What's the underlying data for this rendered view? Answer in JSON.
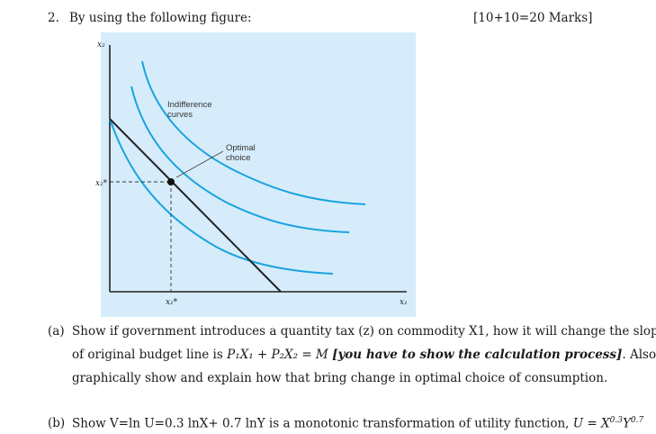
{
  "question": {
    "number": "2.",
    "prompt": "By using the following figure:",
    "marks": "[10+10=20 Marks]"
  },
  "figure": {
    "indifference_label_line1": "Indifference",
    "indifference_label_line2": "curves",
    "optimal_label_line1": "Optimal",
    "optimal_label_line2": "choice",
    "y_axis_label": "x₂",
    "x_axis_label": "x₁",
    "y_star_label": "x₂*",
    "x_star_label": "x₁*",
    "colors": {
      "panel_bg": "#d6ecfb",
      "curve": "#1aa3e0",
      "budget_line": "#222222",
      "axis": "#222222"
    }
  },
  "part_a": {
    "label": "(a)",
    "line1": "Show if government introduces a quantity tax (z) on commodity X1, how it will change the slope",
    "line2_prefix": "of original budget line is ",
    "line2_math": "P₁X₁ + P₂X₂ = M",
    "line2_emphasis": "[you have to show the calculation process]",
    "line2_suffix": ". Also,",
    "line3": "graphically show and explain how that bring change in optimal choice of consumption."
  },
  "part_b": {
    "label": "(b)",
    "line1_prefix": "Show V=ln U=0.3 lnX+ 0.7 lnY is a monotonic transformation of utility function, ",
    "math_lhs": "U = X",
    "exp1": "0.3",
    "math_mid": "Y",
    "exp2": "0.7"
  }
}
